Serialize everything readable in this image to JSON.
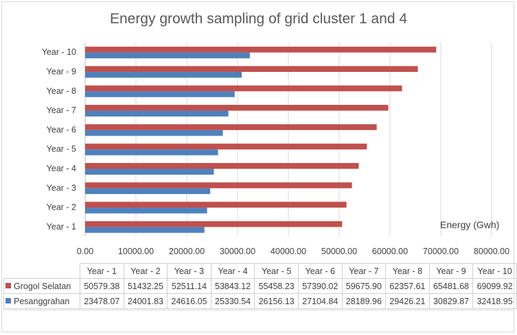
{
  "chart_data": {
    "type": "bar",
    "orientation": "horizontal",
    "title": "Energy growth sampling of  grid cluster 1 and 4",
    "xlabel": "Energy (Gwh)",
    "ylabel": "",
    "xlim": [
      0,
      80000
    ],
    "x_ticks": [
      "0.00",
      "10000.00",
      "20000.00",
      "30000.00",
      "40000.00",
      "50000.00",
      "60000.00",
      "70000.00",
      "80000.00"
    ],
    "grid": true,
    "categories": [
      "Year - 1",
      "Year - 2",
      "Year - 3",
      "Year - 4",
      "Year - 5",
      "Year - 6",
      "Year - 7",
      "Year - 8",
      "Year - 9",
      "Year - 10"
    ],
    "series": [
      {
        "name": "Grogol Selatan",
        "color": "#c0504d",
        "values": [
          50579.38,
          51432.25,
          52511.14,
          53843.12,
          55458.23,
          57390.02,
          59675.9,
          62357.61,
          65481.68,
          69099.92
        ],
        "labels": [
          "50579.38",
          "51432.25",
          "52511.14",
          "53843.12",
          "55458.23",
          "57390.02",
          "59675.90",
          "62357.61",
          "65481.68",
          "69099.92"
        ]
      },
      {
        "name": "Pesanggrahan",
        "color": "#4f81bd",
        "values": [
          23478.07,
          24001.83,
          24616.05,
          25330.54,
          26156.13,
          27104.84,
          28189.96,
          29426.21,
          30829.87,
          32418.95
        ],
        "labels": [
          "23478.07",
          "24001.83",
          "24616.05",
          "25330.54",
          "26156.13",
          "27104.84",
          "28189.96",
          "29426.21",
          "30829.87",
          "32418.95"
        ]
      }
    ]
  }
}
